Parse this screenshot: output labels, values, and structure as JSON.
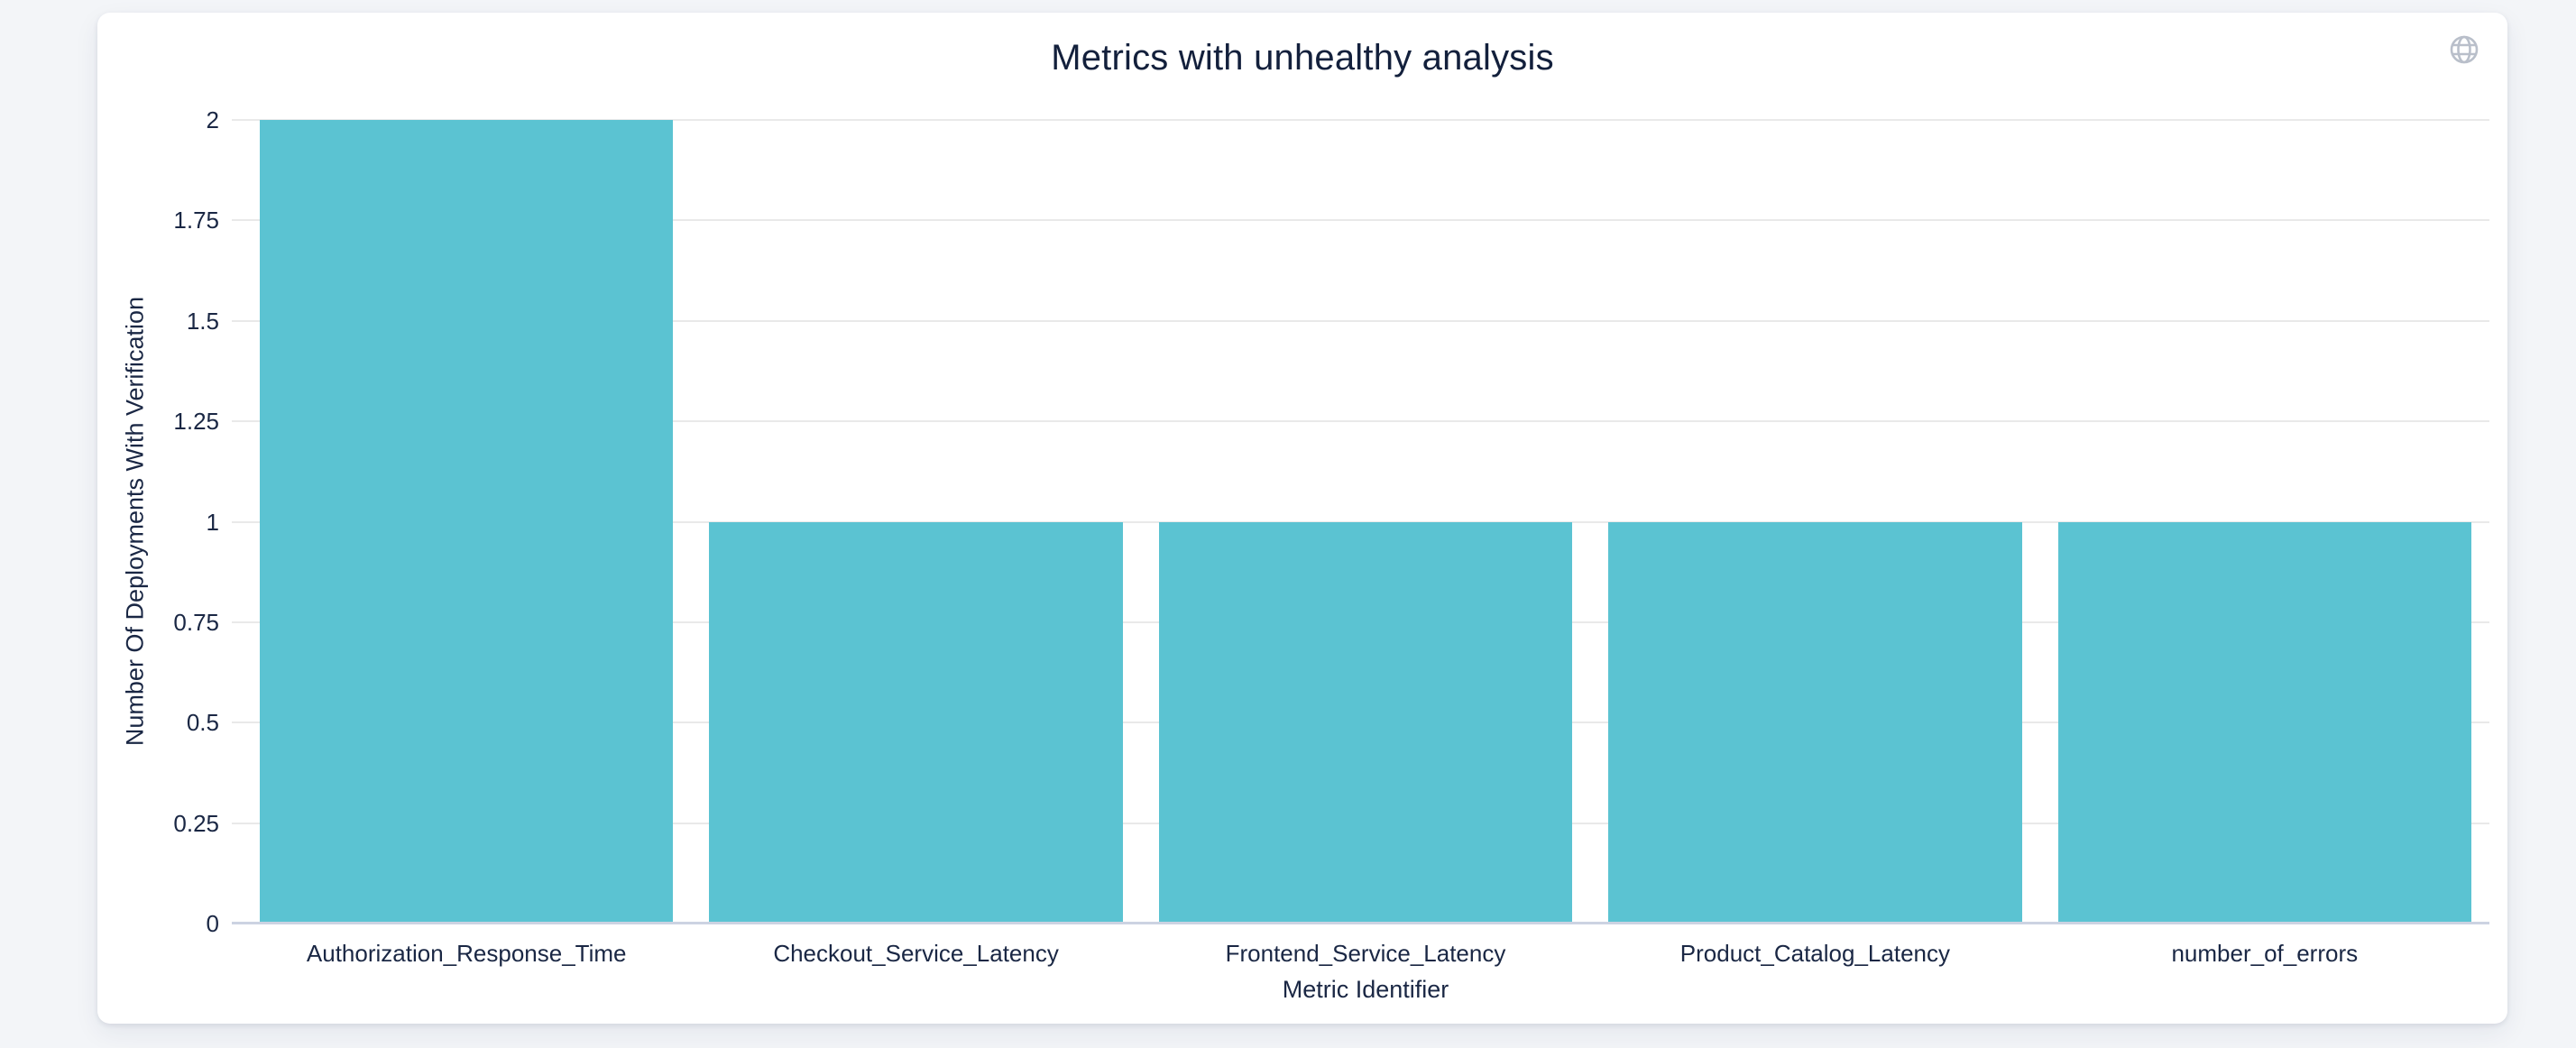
{
  "card": {
    "title": "Metrics with unhealthy analysis"
  },
  "icons": {
    "top_right": "globe-icon"
  },
  "colors": {
    "bar": "#5bc3d2",
    "grid": "#e9e9e9",
    "baseline": "#ccd3e2",
    "text": "#1a2744",
    "title_text": "#13203c",
    "icon": "#b9bfca",
    "page_bg": "#f3f5f8",
    "card_bg": "#ffffff"
  },
  "chart_data": {
    "type": "bar",
    "title": "Metrics with unhealthy analysis",
    "categories": [
      "Authorization_Response_Time",
      "Checkout_Service_Latency",
      "Frontend_Service_Latency",
      "Product_Catalog_Latency",
      "number_of_errors"
    ],
    "values": [
      2,
      1,
      1,
      1,
      1
    ],
    "xlabel": "Metric Identifier",
    "ylabel": "Number Of Deployments With Verification",
    "ylim": [
      0,
      2
    ],
    "ytick_step": 0.25,
    "yticks": [
      "0",
      "0.25",
      "0.5",
      "0.75",
      "1",
      "1.25",
      "1.5",
      "1.75",
      "2"
    ],
    "grid": true,
    "legend": false,
    "bar_width_fraction": 0.92
  }
}
